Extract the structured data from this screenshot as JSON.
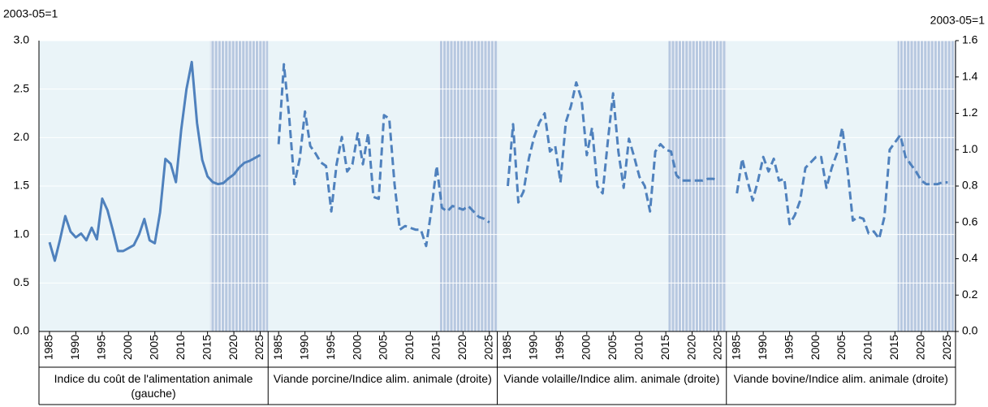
{
  "chart_data": {
    "type": "line",
    "y_label": "2003-05=1",
    "y2_label": "2003-05=1",
    "ylim": [
      0,
      3
    ],
    "yticks": [
      {
        "value": 0,
        "label": "0.0"
      },
      {
        "value": 0.5,
        "label": "0.5"
      },
      {
        "value": 1,
        "label": "1.0"
      },
      {
        "value": 1.5,
        "label": "1.5"
      },
      {
        "value": 2,
        "label": "2.0"
      },
      {
        "value": 2.5,
        "label": "2.5"
      },
      {
        "value": 3,
        "label": "3.0"
      }
    ],
    "y2lim": [
      0,
      1.6
    ],
    "y2ticks": [
      {
        "value": 0,
        "label": "0.0"
      },
      0.2,
      0.4,
      0.6,
      0.8,
      {
        "value": 1,
        "label": "1.0"
      },
      1.2,
      1.4,
      1.6
    ],
    "xlim": [
      1983,
      2026.5
    ],
    "xticks": [
      1985,
      1990,
      1995,
      2000,
      2005,
      2010,
      2015,
      2020,
      2025
    ],
    "shaded_xrange": [
      2015.5,
      2026.5
    ],
    "grid": true,
    "x": [
      1985,
      1986,
      1987,
      1988,
      1989,
      1990,
      1991,
      1992,
      1993,
      1994,
      1995,
      1996,
      1997,
      1998,
      1999,
      2000,
      2001,
      2002,
      2003,
      2004,
      2005,
      2006,
      2007,
      2008,
      2009,
      2010,
      2011,
      2012,
      2013,
      2014,
      2015,
      2016,
      2017,
      2018,
      2019,
      2020,
      2021,
      2022,
      2023,
      2024,
      2025
    ],
    "series": [
      {
        "name": "Indice du coût de l'alimentation animale (gauche)",
        "axis": "y",
        "color": "#4f81bd",
        "dashed": false,
        "values": [
          0.92,
          0.73,
          0.95,
          1.19,
          1.03,
          0.97,
          1.01,
          0.94,
          1.07,
          0.95,
          1.37,
          1.25,
          1.05,
          0.83,
          0.83,
          0.86,
          0.89,
          1.0,
          1.16,
          0.94,
          0.91,
          1.23,
          1.78,
          1.73,
          1.54,
          2.08,
          2.5,
          2.78,
          2.15,
          1.77,
          1.6,
          1.54,
          1.52,
          1.53,
          1.58,
          1.62,
          1.69,
          1.74,
          1.76,
          1.79,
          1.82
        ]
      },
      {
        "name": "Viande porcine/Indice alim. animale (droite)",
        "axis": "y2",
        "color": "#4f81bd",
        "dashed": true,
        "values": [
          1.03,
          1.47,
          1.18,
          0.81,
          0.95,
          1.21,
          1.02,
          0.98,
          0.93,
          0.91,
          0.66,
          0.92,
          1.07,
          0.88,
          0.92,
          1.09,
          0.92,
          1.09,
          0.74,
          0.73,
          1.19,
          1.17,
          0.81,
          0.56,
          0.58,
          0.57,
          0.56,
          0.56,
          0.47,
          0.67,
          0.91,
          0.68,
          0.66,
          0.69,
          0.68,
          0.67,
          0.69,
          0.66,
          0.63,
          0.62,
          0.6
        ]
      },
      {
        "name": "Viande volaille/Indice alim. animale (droite)",
        "axis": "y2",
        "color": "#4f81bd",
        "dashed": true,
        "values": [
          0.8,
          1.14,
          0.71,
          0.77,
          0.95,
          1.07,
          1.15,
          1.2,
          0.99,
          1.02,
          0.82,
          1.15,
          1.24,
          1.37,
          1.28,
          0.97,
          1.12,
          0.8,
          0.76,
          1.05,
          1.31,
          0.99,
          0.79,
          1.06,
          0.96,
          0.85,
          0.8,
          0.66,
          0.99,
          1.03,
          1.0,
          0.99,
          0.86,
          0.83,
          0.83,
          0.83,
          0.83,
          0.83,
          0.84,
          0.84,
          0.83
        ]
      },
      {
        "name": "Viande bovine/Indice alim. animale (droite)",
        "axis": "y2",
        "color": "#4f81bd",
        "dashed": true,
        "values": [
          0.76,
          0.95,
          0.83,
          0.72,
          0.83,
          0.96,
          0.88,
          0.95,
          0.83,
          0.84,
          0.59,
          0.64,
          0.72,
          0.9,
          0.93,
          0.96,
          0.96,
          0.79,
          0.9,
          0.98,
          1.12,
          0.89,
          0.61,
          0.63,
          0.62,
          0.54,
          0.55,
          0.51,
          0.63,
          1.0,
          1.04,
          1.08,
          0.96,
          0.92,
          0.88,
          0.83,
          0.81,
          0.81,
          0.81,
          0.82,
          0.82
        ]
      }
    ]
  }
}
